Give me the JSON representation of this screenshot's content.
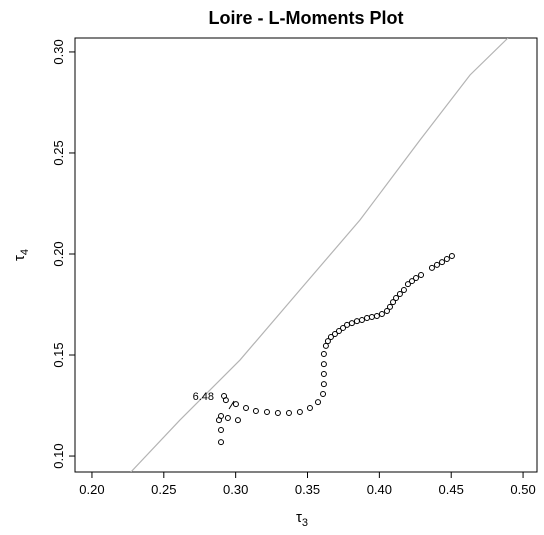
{
  "chart_data": {
    "type": "scatter",
    "title": "Loire - L-Moments Plot",
    "xlabel": "τ",
    "xlabel_sub": "3",
    "ylabel": "τ",
    "ylabel_sub": "4",
    "xlim": [
      0.1882,
      0.5097
    ],
    "ylim": [
      0.0921,
      0.3069
    ],
    "xticks": [
      {
        "value": 0.2,
        "label": "0.20"
      },
      {
        "value": 0.25,
        "label": "0.25"
      },
      {
        "value": 0.3,
        "label": "0.30"
      },
      {
        "value": 0.35,
        "label": "0.35"
      },
      {
        "value": 0.4,
        "label": "0.40"
      },
      {
        "value": 0.45,
        "label": "0.45"
      },
      {
        "value": 0.5,
        "label": "0.50"
      }
    ],
    "yticks": [
      {
        "value": 0.1,
        "label": "0.10"
      },
      0.15,
      {
        "value": 0.2,
        "label": "0.20"
      },
      0.25,
      {
        "value": 0.3,
        "label": "0.30"
      }
    ],
    "annotation": "6.48",
    "points": {
      "color": "#000000",
      "x": [
        0.2919,
        0.2932,
        0.3002,
        0.3072,
        0.3141,
        0.3218,
        0.3294,
        0.3371,
        0.3447,
        0.3517,
        0.3573,
        0.3608,
        0.3614,
        0.3614,
        0.3614,
        0.3614,
        0.3628,
        0.3642,
        0.3663,
        0.3691,
        0.3719,
        0.3747,
        0.3775,
        0.3809,
        0.3844,
        0.3879,
        0.3914,
        0.3948,
        0.3983,
        0.4018,
        0.4053,
        0.4074,
        0.4095,
        0.4116,
        0.4143,
        0.4171,
        0.4199,
        0.4227,
        0.4255,
        0.429,
        0.4366,
        0.4401,
        0.4436,
        0.447,
        0.4505,
        0.2898,
        0.2898,
        0.2884,
        0.2898,
        0.2946,
        0.3016
      ],
      "y": [
        0.1297,
        0.1277,
        0.1257,
        0.1238,
        0.1223,
        0.1218,
        0.1213,
        0.1213,
        0.1218,
        0.1238,
        0.1267,
        0.1307,
        0.1356,
        0.1406,
        0.1455,
        0.1505,
        0.1545,
        0.1569,
        0.1589,
        0.1604,
        0.1619,
        0.1634,
        0.1649,
        0.1658,
        0.1668,
        0.1673,
        0.1683,
        0.1688,
        0.1693,
        0.1703,
        0.1718,
        0.1738,
        0.1762,
        0.1782,
        0.1802,
        0.1822,
        0.1851,
        0.1866,
        0.1881,
        0.1896,
        0.1931,
        0.1946,
        0.196,
        0.1975,
        0.199,
        0.1069,
        0.1129,
        0.1178,
        0.1198,
        0.1188,
        0.1178
      ]
    },
    "curve": {
      "color": "#b4b4b4",
      "x": [
        0.2271,
        0.2612,
        0.303,
        0.3447,
        0.3865,
        0.4283,
        0.4631,
        0.4895
      ],
      "y": [
        0.0921,
        0.1178,
        0.1475,
        0.1822,
        0.2168,
        0.2564,
        0.2886,
        0.3069
      ]
    }
  }
}
